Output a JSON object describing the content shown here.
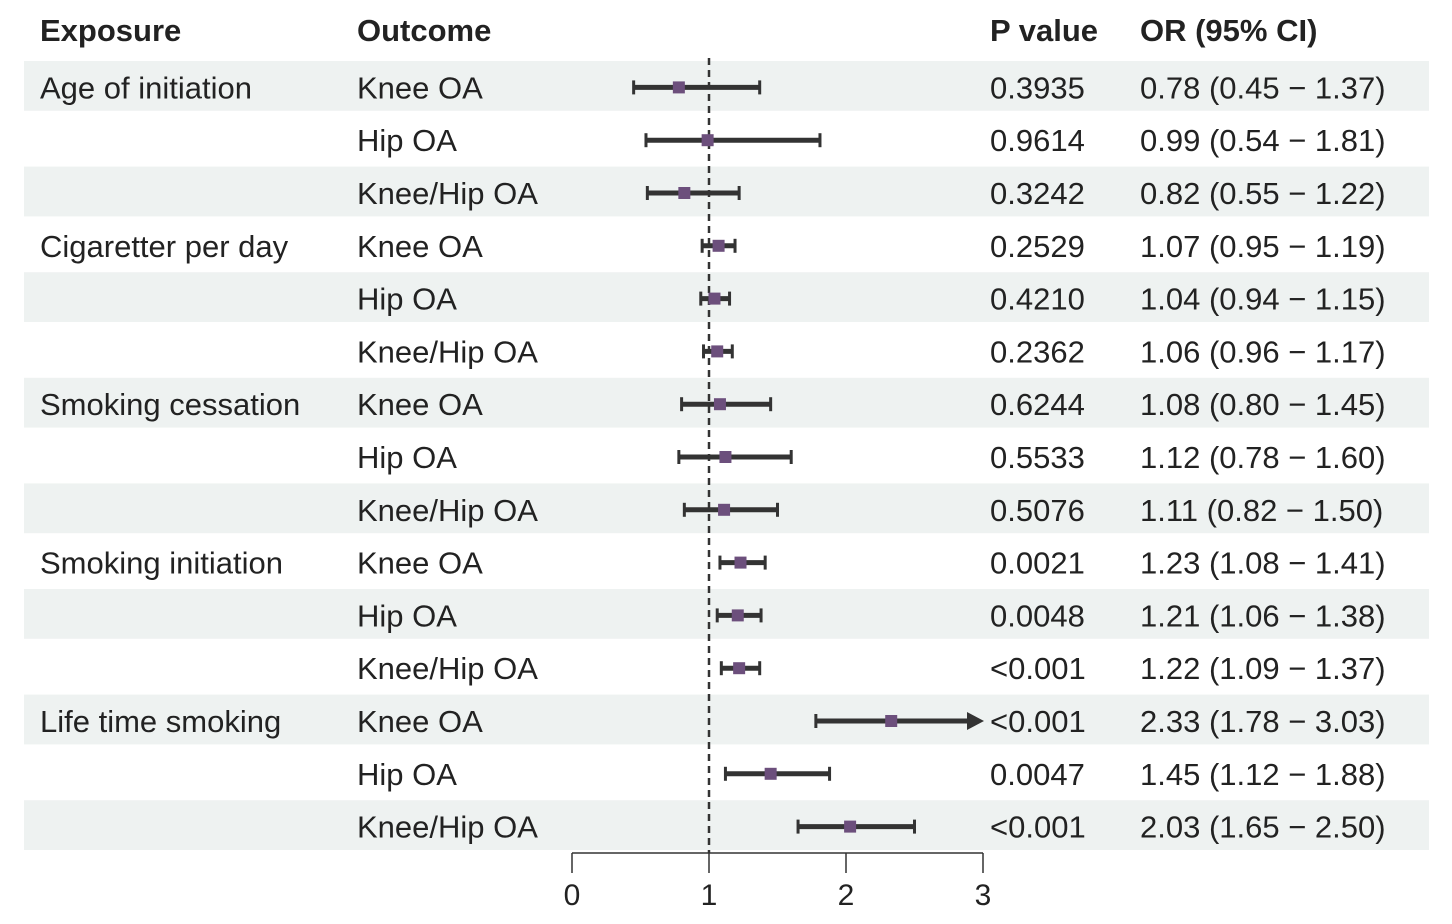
{
  "headers": {
    "exposure": "Exposure",
    "outcome": "Outcome",
    "p_value": "P value",
    "or_ci": "OR (95% CI)"
  },
  "colors": {
    "band": "#eef2f1",
    "whisker": "#333333",
    "point": "#6c4f7c",
    "refline": "#333333",
    "text": "#222222"
  },
  "chart_data": {
    "type": "forest",
    "title": "",
    "xlabel": "",
    "xlim": [
      0,
      3
    ],
    "xticks": [
      0,
      1,
      2,
      3
    ],
    "reference_line": 1,
    "rows": [
      {
        "exposure": "Age of initiation",
        "outcome": "Knee OA",
        "or": 0.78,
        "lo": 0.45,
        "hi": 1.37,
        "p": "0.3935",
        "label": "0.78 (0.45 − 1.37)"
      },
      {
        "exposure": "",
        "outcome": "Hip OA",
        "or": 0.99,
        "lo": 0.54,
        "hi": 1.81,
        "p": "0.9614",
        "label": "0.99 (0.54 − 1.81)"
      },
      {
        "exposure": "",
        "outcome": "Knee/Hip OA",
        "or": 0.82,
        "lo": 0.55,
        "hi": 1.22,
        "p": "0.3242",
        "label": "0.82 (0.55 − 1.22)"
      },
      {
        "exposure": "Cigaretter per day",
        "outcome": "Knee OA",
        "or": 1.07,
        "lo": 0.95,
        "hi": 1.19,
        "p": "0.2529",
        "label": "1.07 (0.95 − 1.19)"
      },
      {
        "exposure": "",
        "outcome": "Hip OA",
        "or": 1.04,
        "lo": 0.94,
        "hi": 1.15,
        "p": "0.4210",
        "label": "1.04 (0.94 − 1.15)"
      },
      {
        "exposure": "",
        "outcome": "Knee/Hip OA",
        "or": 1.06,
        "lo": 0.96,
        "hi": 1.17,
        "p": "0.2362",
        "label": "1.06 (0.96 − 1.17)"
      },
      {
        "exposure": "Smoking cessation",
        "outcome": "Knee OA",
        "or": 1.08,
        "lo": 0.8,
        "hi": 1.45,
        "p": "0.6244",
        "label": "1.08 (0.80 − 1.45)"
      },
      {
        "exposure": "",
        "outcome": "Hip OA",
        "or": 1.12,
        "lo": 0.78,
        "hi": 1.6,
        "p": "0.5533",
        "label": "1.12 (0.78 − 1.60)"
      },
      {
        "exposure": "",
        "outcome": "Knee/Hip OA",
        "or": 1.11,
        "lo": 0.82,
        "hi": 1.5,
        "p": "0.5076",
        "label": "1.11 (0.82 − 1.50)"
      },
      {
        "exposure": "Smoking initiation",
        "outcome": "Knee OA",
        "or": 1.23,
        "lo": 1.08,
        "hi": 1.41,
        "p": "0.0021",
        "label": "1.23 (1.08 − 1.41)"
      },
      {
        "exposure": "",
        "outcome": "Hip OA",
        "or": 1.21,
        "lo": 1.06,
        "hi": 1.38,
        "p": "0.0048",
        "label": "1.21 (1.06 − 1.38)"
      },
      {
        "exposure": "",
        "outcome": "Knee/Hip OA",
        "or": 1.22,
        "lo": 1.09,
        "hi": 1.37,
        "p": "<0.001",
        "label": "1.22 (1.09 − 1.37)"
      },
      {
        "exposure": "Life time smoking",
        "outcome": "Knee OA",
        "or": 2.33,
        "lo": 1.78,
        "hi": 3.03,
        "p": "<0.001",
        "label": "2.33 (1.78 − 3.03)",
        "arrow_right": true
      },
      {
        "exposure": "",
        "outcome": "Hip OA",
        "or": 1.45,
        "lo": 1.12,
        "hi": 1.88,
        "p": "0.0047",
        "label": "1.45 (1.12 − 1.88)"
      },
      {
        "exposure": "",
        "outcome": "Knee/Hip OA",
        "or": 2.03,
        "lo": 1.65,
        "hi": 2.5,
        "p": "<0.001",
        "label": "2.03 (1.65 − 2.50)"
      }
    ]
  }
}
